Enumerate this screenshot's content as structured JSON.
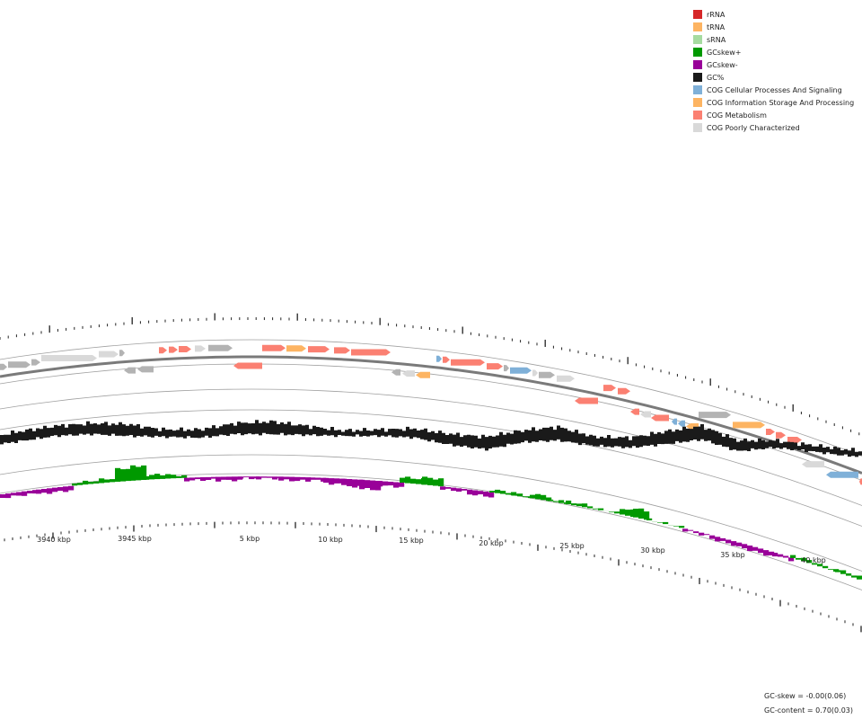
{
  "legend": [
    {
      "label": "rRNA",
      "color": "#d62728"
    },
    {
      "label": "tRNA",
      "color": "#fdb462"
    },
    {
      "label": "sRNA",
      "color": "#a6dba0"
    },
    {
      "label": "GCskew+",
      "color": "#009900"
    },
    {
      "label": "GCskew-",
      "color": "#990099"
    },
    {
      "label": "GC%",
      "color": "#1a1a1a"
    },
    {
      "label": "COG Cellular Processes And Signaling",
      "color": "#7fb0d8"
    },
    {
      "label": "COG Information Storage And Processing",
      "color": "#fdb462"
    },
    {
      "label": "COG Metabolism",
      "color": "#fb8072"
    },
    {
      "label": "COG Poorly Characterized",
      "color": "#d9d9d9"
    }
  ],
  "axis_labels": [
    "3940 kbp",
    "3945 kbp",
    "5 kbp",
    "10 kbp",
    "15 kbp",
    "20 kbp",
    "25 kbp",
    "30 kbp",
    "35 kbp",
    "40 kbp"
  ],
  "stats": {
    "gc_skew": "GC-skew = -0.00(0.06)",
    "gc_content": "GC-content = 0.70(0.03)"
  },
  "colors": {
    "metabolism": "#fb8072",
    "info": "#fdb462",
    "cellular": "#7fb0d8",
    "poorly": "#d9d9d9",
    "unknown": "#b3b3b3",
    "gc": "#1a1a1a",
    "skew_pos": "#009900",
    "skew_neg": "#990099",
    "backbone": "#7a7a7a"
  }
}
